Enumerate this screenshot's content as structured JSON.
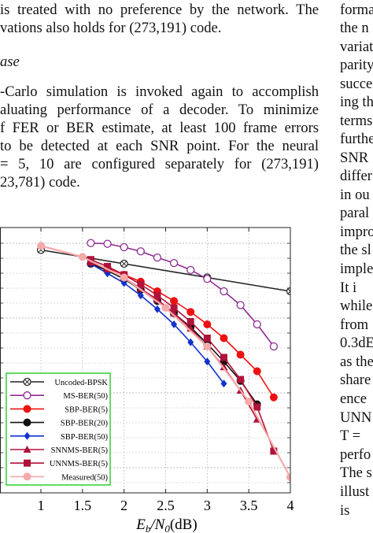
{
  "left_column": {
    "lines_top": [
      "is treated with no preference by the network. The",
      "vations also holds for (273,191) code."
    ],
    "subsection_heading": "ase",
    "paragraph_lines": [
      "-Carlo simulation is invoked again to accomplish",
      "aluating performance of a decoder. To minimize",
      "f FER or BER estimate, at least 100 frame errors",
      "to be detected at each SNR point. For the neural",
      "= 5, 10 are configured separately for (273,191)",
      "23,781) code."
    ]
  },
  "right_column": {
    "lines": [
      "forma",
      "the n",
      "variat",
      "parity",
      "succe",
      "ing th",
      "terms",
      "furthe",
      "SNR",
      "differ",
      "in ou",
      "paral",
      "impro",
      "the sl",
      "imple",
      "It i",
      "while",
      "from",
      "0.3dE",
      "as the",
      "share",
      "ence",
      "UNN",
      "T =",
      "perfo",
      "The s",
      "illust",
      "is"
    ]
  },
  "chart_data": {
    "type": "line",
    "xlabel": "E_b/N_0(dB)",
    "xlim": [
      0.5,
      4
    ],
    "xticks": [
      "1",
      "1.5",
      "2",
      "2.5",
      "3",
      "3.5",
      "4"
    ],
    "xtick_values": [
      1,
      1.5,
      2,
      2.5,
      3,
      3.5,
      4
    ],
    "grid": true,
    "legend_position": "bottom-left",
    "legend_border_color": "#22cc22",
    "series": [
      {
        "name": "Uncoded-BPSK",
        "color": "#222222",
        "marker": "circle-x",
        "x": [
          1,
          2,
          3,
          4
        ],
        "y": [
          -0.1,
          -0.2,
          -0.3,
          -0.4
        ]
      },
      {
        "name": "MS-BER(50)",
        "color": "#8e2b91",
        "marker": "circle-open",
        "x": [
          1.6,
          1.8,
          2.0,
          2.2,
          2.4,
          2.6,
          2.8,
          3.0,
          3.2,
          3.4,
          3.6,
          3.8
        ],
        "y": [
          -0.05,
          -0.055,
          -0.08,
          -0.11,
          -0.155,
          -0.195,
          -0.245,
          -0.31,
          -0.4,
          -0.5,
          -0.64,
          -0.8
        ]
      },
      {
        "name": "SBP-BER(5)",
        "color": "#ee1111",
        "marker": "circle-filled",
        "x": [
          1.6,
          1.8,
          2.0,
          2.2,
          2.4,
          2.6,
          2.8,
          3.0,
          3.2,
          3.4,
          3.6,
          3.8
        ],
        "y": [
          -0.2,
          -0.23,
          -0.28,
          -0.33,
          -0.4,
          -0.47,
          -0.55,
          -0.64,
          -0.74,
          -0.86,
          -0.98,
          -1.17
        ]
      },
      {
        "name": "SBP-BER(20)",
        "color": "#111111",
        "marker": "circle-filled",
        "x": [
          1.6,
          1.8,
          2.0,
          2.2,
          2.4,
          2.6,
          2.8,
          3.0,
          3.2,
          3.4,
          3.6
        ],
        "y": [
          -0.2,
          -0.25,
          -0.31,
          -0.39,
          -0.47,
          -0.56,
          -0.66,
          -0.78,
          -0.91,
          -1.05,
          -1.22
        ]
      },
      {
        "name": "SBP-BER(50)",
        "color": "#1133cc",
        "marker": "diamond",
        "x": [
          1.6,
          1.8,
          2.0,
          2.2,
          2.4,
          2.6,
          2.8,
          3.0,
          3.2
        ],
        "y": [
          -0.2,
          -0.27,
          -0.34,
          -0.43,
          -0.53,
          -0.64,
          -0.77,
          -0.91,
          -1.07
        ]
      },
      {
        "name": "SNNMS-BER(5)",
        "color": "#b0123a",
        "marker": "triangle",
        "x": [
          1.6,
          1.8,
          2.0,
          2.2,
          2.4,
          2.6,
          2.8,
          3.0,
          3.2,
          3.4,
          3.6
        ],
        "y": [
          -0.19,
          -0.24,
          -0.3,
          -0.38,
          -0.46,
          -0.56,
          -0.67,
          -0.8,
          -0.95,
          -1.12,
          -1.33
        ]
      },
      {
        "name": "UNNMS-BER(5)",
        "color": "#b0123a",
        "marker": "square",
        "x": [
          1.6,
          1.8,
          2.0,
          2.2,
          2.4,
          2.6,
          2.8,
          3.0,
          3.2,
          3.4,
          3.6,
          3.8
        ],
        "y": [
          -0.17,
          -0.22,
          -0.28,
          -0.35,
          -0.43,
          -0.52,
          -0.62,
          -0.74,
          -0.88,
          -1.04,
          -1.24,
          -1.56
        ]
      },
      {
        "name": "Measured(50)",
        "color": "#f5a9a9",
        "marker": "circle-filled",
        "x": [
          1.0,
          1.5,
          2.0,
          2.5,
          3.0,
          3.5,
          4.0
        ],
        "y": [
          -0.07,
          -0.15,
          -0.3,
          -0.52,
          -0.8,
          -1.2,
          -1.75
        ]
      }
    ]
  }
}
